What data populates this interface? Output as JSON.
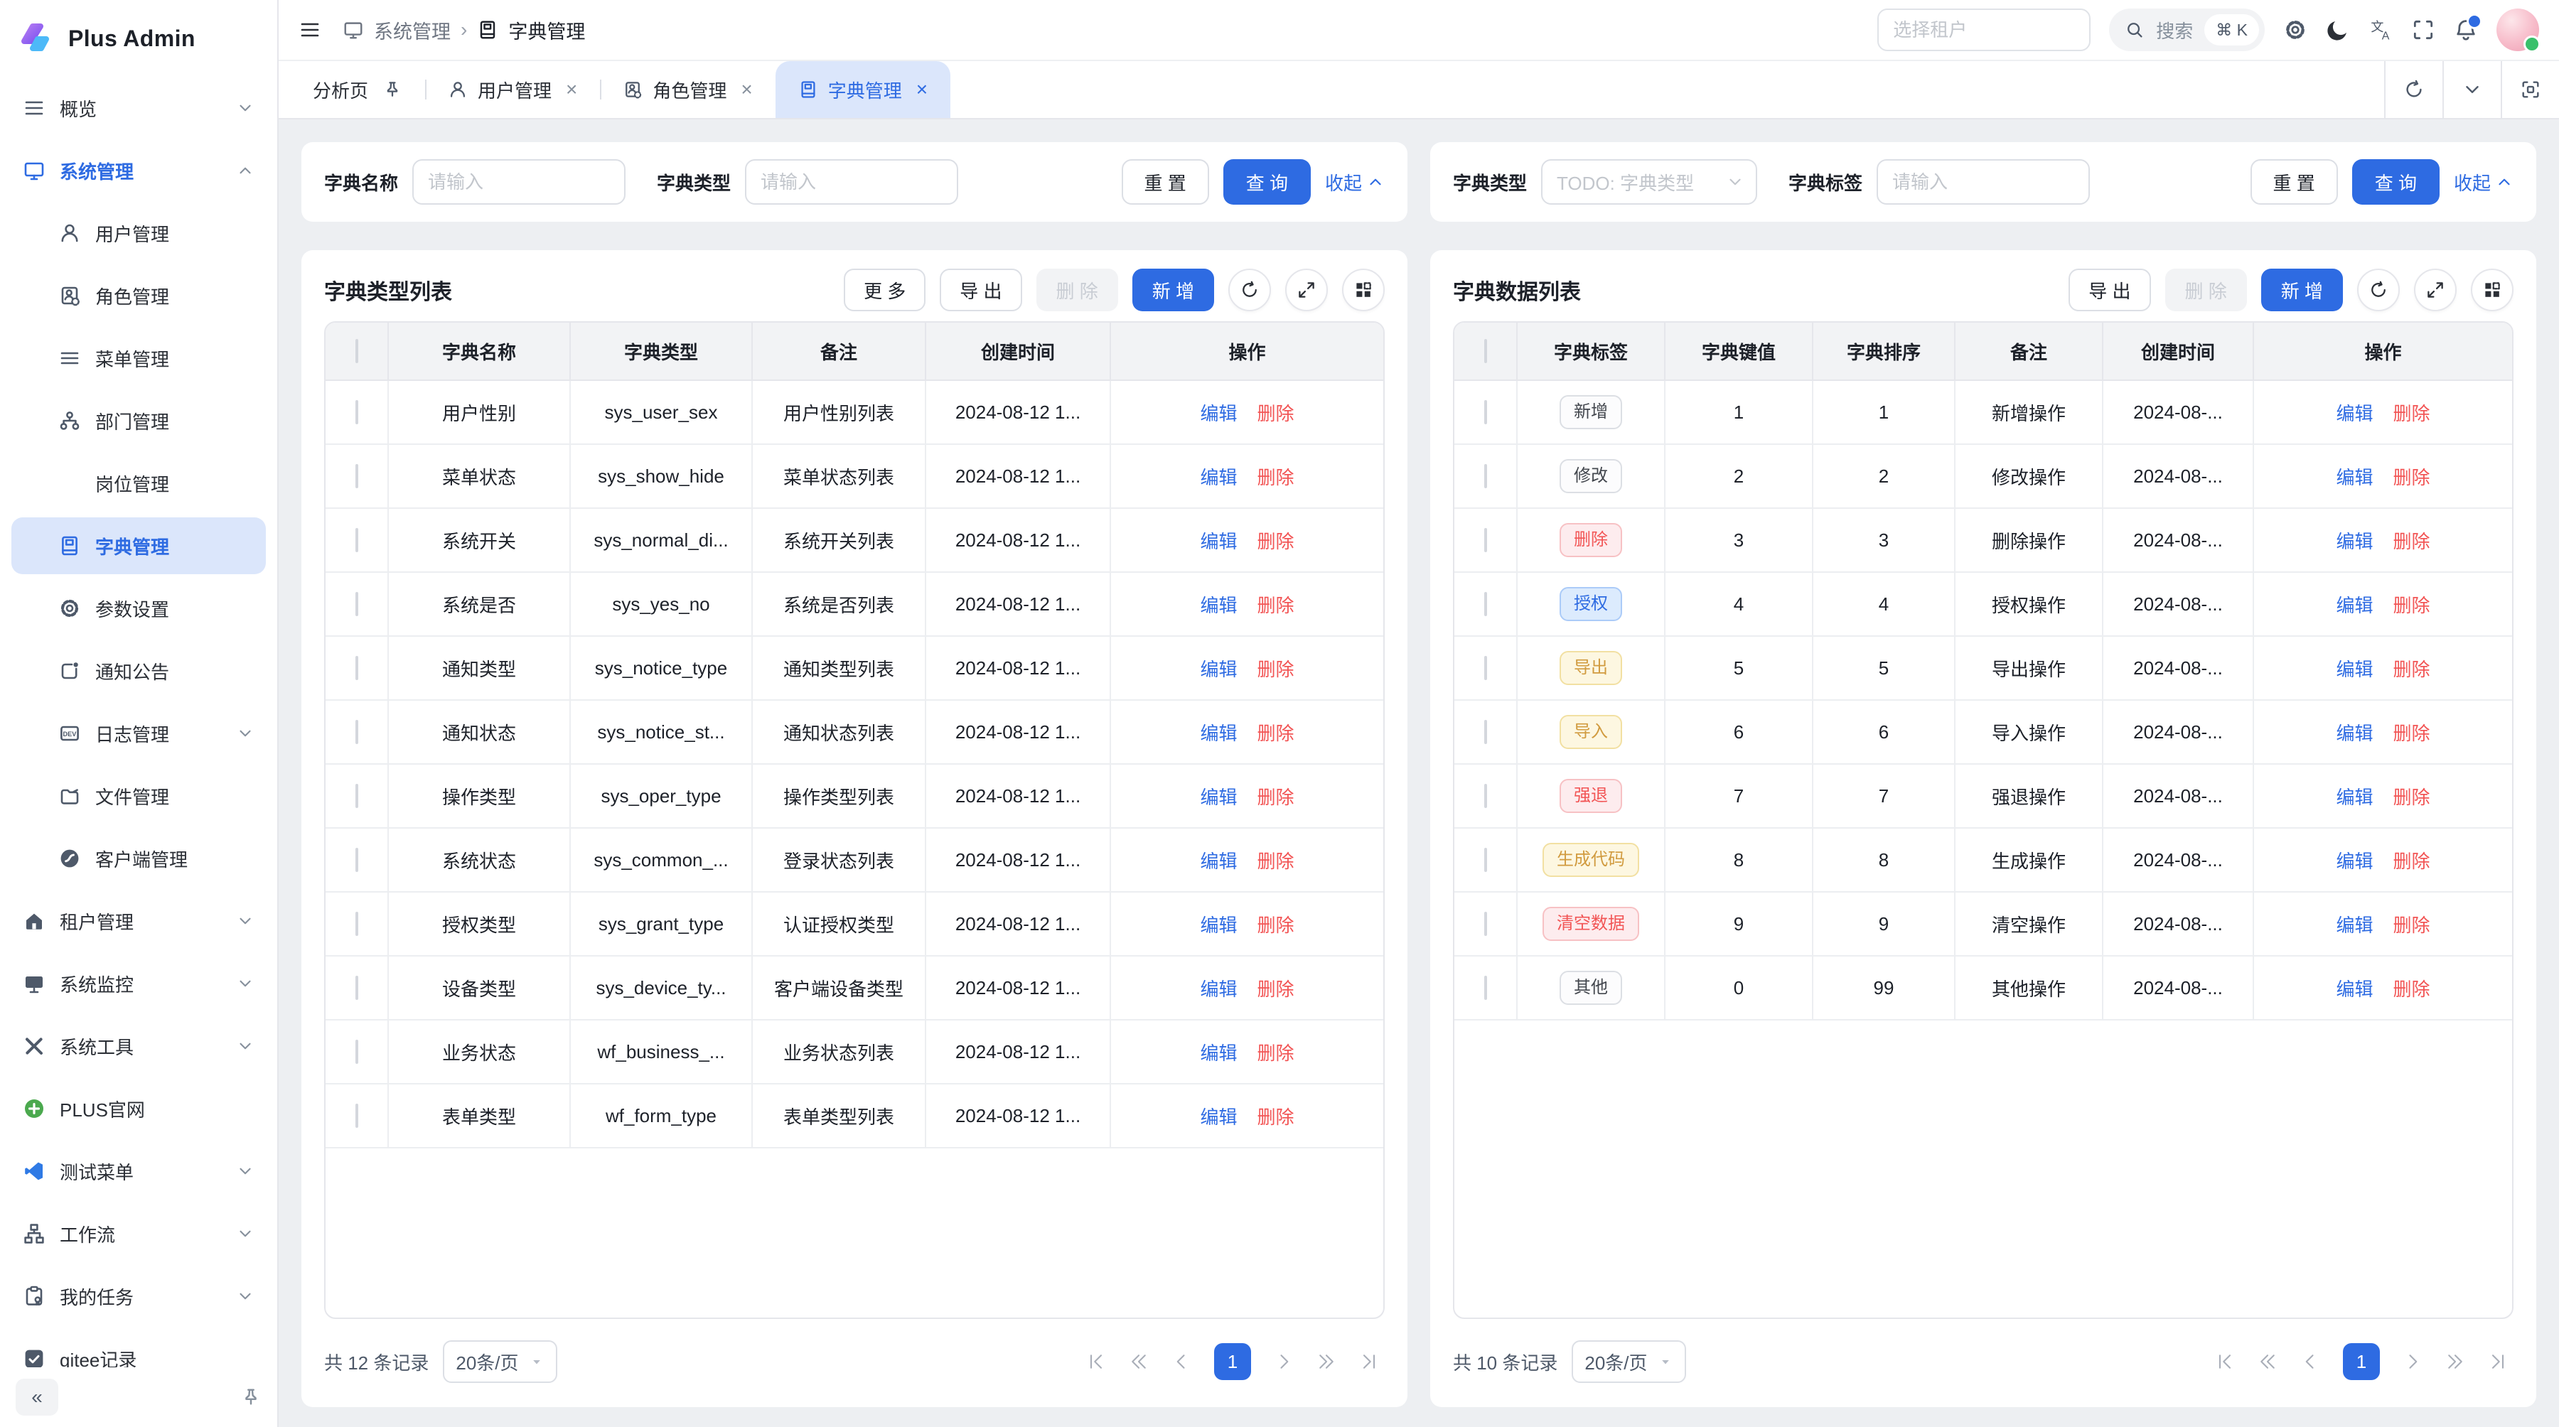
{
  "app": {
    "title": "Plus Admin"
  },
  "header": {
    "breadcrumb_sep": "›",
    "breadcrumb": [
      {
        "label": "系统管理"
      },
      {
        "label": "字典管理"
      }
    ],
    "tenant_placeholder": "选择租户",
    "search_label": "搜索",
    "search_kbd": "⌘ K"
  },
  "tabbar": {
    "tabs": [
      {
        "label": "分析页",
        "icon": "",
        "pin": true
      },
      {
        "label": "用户管理",
        "icon": "user",
        "closable": true
      },
      {
        "label": "角色管理",
        "icon": "role",
        "closable": true
      },
      {
        "label": "字典管理",
        "icon": "dict",
        "closable": true,
        "active": true
      }
    ]
  },
  "sidebar": {
    "collapse_glyph": "«",
    "items": [
      {
        "label": "概览",
        "icon": "overview",
        "level": "top",
        "chevron": "down"
      },
      {
        "label": "系统管理",
        "icon": "system",
        "level": "top",
        "chevron": "up",
        "active": true
      },
      {
        "label": "用户管理",
        "icon": "user",
        "level": "child"
      },
      {
        "label": "角色管理",
        "icon": "role",
        "level": "child"
      },
      {
        "label": "菜单管理",
        "icon": "menu",
        "level": "child"
      },
      {
        "label": "部门管理",
        "icon": "dept",
        "level": "child"
      },
      {
        "label": "岗位管理",
        "icon": "post",
        "level": "child"
      },
      {
        "label": "字典管理",
        "icon": "dict",
        "level": "child",
        "active": true
      },
      {
        "label": "参数设置",
        "icon": "config",
        "level": "child"
      },
      {
        "label": "通知公告",
        "icon": "notice",
        "level": "child"
      },
      {
        "label": "日志管理",
        "icon": "log",
        "level": "child",
        "chevron": "down"
      },
      {
        "label": "文件管理",
        "icon": "file",
        "level": "child"
      },
      {
        "label": "客户端管理",
        "icon": "client",
        "level": "child"
      },
      {
        "label": "租户管理",
        "icon": "tenant",
        "level": "top",
        "chevron": "down"
      },
      {
        "label": "系统监控",
        "icon": "monitor",
        "level": "top",
        "chevron": "down"
      },
      {
        "label": "系统工具",
        "icon": "tools",
        "level": "top",
        "chevron": "down"
      },
      {
        "label": "PLUS官网",
        "icon": "plus",
        "level": "top"
      },
      {
        "label": "测试菜单",
        "icon": "test",
        "level": "top",
        "chevron": "down"
      },
      {
        "label": "工作流",
        "icon": "workflow",
        "level": "top",
        "chevron": "down"
      },
      {
        "label": "我的任务",
        "icon": "task",
        "level": "top",
        "chevron": "down"
      },
      {
        "label": "gitee记录",
        "icon": "gitee",
        "level": "top"
      }
    ]
  },
  "left": {
    "filter": {
      "fields": [
        {
          "label": "字典名称",
          "placeholder": "请输入"
        },
        {
          "label": "字典类型",
          "placeholder": "请输入"
        }
      ],
      "reset": "重 置",
      "search": "查 询",
      "collapse": "收起"
    },
    "title": "字典类型列表",
    "toolbar": {
      "more": "更 多",
      "export": "导 出",
      "delete": "删 除",
      "add": "新 增"
    },
    "columns": [
      "字典名称",
      "字典类型",
      "备注",
      "创建时间",
      "操作"
    ],
    "actions": {
      "edit": "编辑",
      "delete": "删除"
    },
    "rows": [
      {
        "name": "用户性别",
        "type": "sys_user_sex",
        "remark": "用户性别列表",
        "time": "2024-08-12 1..."
      },
      {
        "name": "菜单状态",
        "type": "sys_show_hide",
        "remark": "菜单状态列表",
        "time": "2024-08-12 1..."
      },
      {
        "name": "系统开关",
        "type": "sys_normal_di...",
        "remark": "系统开关列表",
        "time": "2024-08-12 1..."
      },
      {
        "name": "系统是否",
        "type": "sys_yes_no",
        "remark": "系统是否列表",
        "time": "2024-08-12 1..."
      },
      {
        "name": "通知类型",
        "type": "sys_notice_type",
        "remark": "通知类型列表",
        "time": "2024-08-12 1..."
      },
      {
        "name": "通知状态",
        "type": "sys_notice_st...",
        "remark": "通知状态列表",
        "time": "2024-08-12 1..."
      },
      {
        "name": "操作类型",
        "type": "sys_oper_type",
        "remark": "操作类型列表",
        "time": "2024-08-12 1..."
      },
      {
        "name": "系统状态",
        "type": "sys_common_...",
        "remark": "登录状态列表",
        "time": "2024-08-12 1..."
      },
      {
        "name": "授权类型",
        "type": "sys_grant_type",
        "remark": "认证授权类型",
        "time": "2024-08-12 1..."
      },
      {
        "name": "设备类型",
        "type": "sys_device_ty...",
        "remark": "客户端设备类型",
        "time": "2024-08-12 1..."
      },
      {
        "name": "业务状态",
        "type": "wf_business_...",
        "remark": "业务状态列表",
        "time": "2024-08-12 1..."
      },
      {
        "name": "表单类型",
        "type": "wf_form_type",
        "remark": "表单类型列表",
        "time": "2024-08-12 1..."
      }
    ],
    "pagination": {
      "total": "共 12 条记录",
      "size": "20条/页",
      "page": "1"
    }
  },
  "right": {
    "filter": {
      "type_label": "字典类型",
      "type_placeholder": "TODO: 字典类型",
      "tag_label": "字典标签",
      "tag_placeholder": "请输入",
      "reset": "重 置",
      "search": "查 询",
      "collapse": "收起"
    },
    "title": "字典数据列表",
    "toolbar": {
      "export": "导 出",
      "delete": "删 除",
      "add": "新 增"
    },
    "columns": [
      "字典标签",
      "字典键值",
      "字典排序",
      "备注",
      "创建时间",
      "操作"
    ],
    "actions": {
      "edit": "编辑",
      "delete": "删除"
    },
    "rows": [
      {
        "tag": "新增",
        "style": "default",
        "key": "1",
        "sort": "1",
        "remark": "新增操作",
        "time": "2024-08-..."
      },
      {
        "tag": "修改",
        "style": "default",
        "key": "2",
        "sort": "2",
        "remark": "修改操作",
        "time": "2024-08-..."
      },
      {
        "tag": "删除",
        "style": "danger",
        "key": "3",
        "sort": "3",
        "remark": "删除操作",
        "time": "2024-08-..."
      },
      {
        "tag": "授权",
        "style": "primary",
        "key": "4",
        "sort": "4",
        "remark": "授权操作",
        "time": "2024-08-..."
      },
      {
        "tag": "导出",
        "style": "warning",
        "key": "5",
        "sort": "5",
        "remark": "导出操作",
        "time": "2024-08-..."
      },
      {
        "tag": "导入",
        "style": "warning",
        "key": "6",
        "sort": "6",
        "remark": "导入操作",
        "time": "2024-08-..."
      },
      {
        "tag": "强退",
        "style": "danger",
        "key": "7",
        "sort": "7",
        "remark": "强退操作",
        "time": "2024-08-..."
      },
      {
        "tag": "生成代码",
        "style": "warning",
        "key": "8",
        "sort": "8",
        "remark": "生成操作",
        "time": "2024-08-..."
      },
      {
        "tag": "清空数据",
        "style": "danger",
        "key": "9",
        "sort": "9",
        "remark": "清空操作",
        "time": "2024-08-..."
      },
      {
        "tag": "其他",
        "style": "default",
        "key": "0",
        "sort": "99",
        "remark": "其他操作",
        "time": "2024-08-..."
      }
    ],
    "pagination": {
      "total": "共 10 条记录",
      "size": "20条/页",
      "page": "1"
    }
  }
}
